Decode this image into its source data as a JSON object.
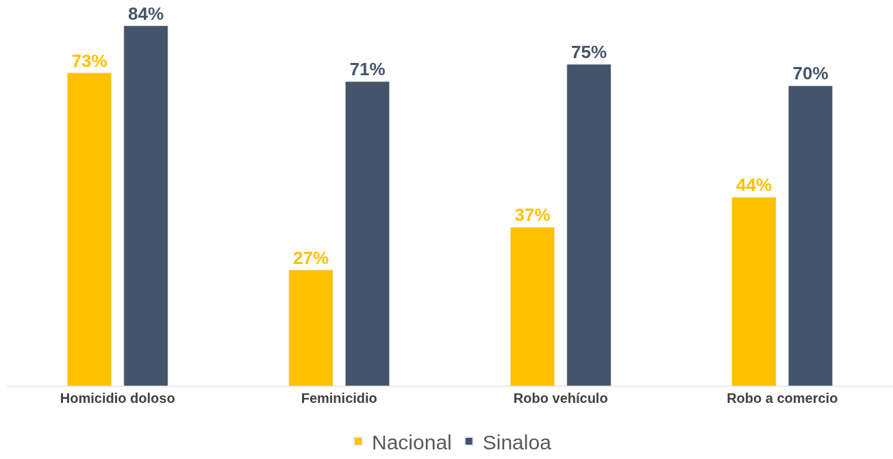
{
  "chart_data": {
    "type": "bar",
    "categories": [
      "Homicidio doloso",
      "Feminicidio",
      "Robo vehículo",
      "Robo a comercio"
    ],
    "series": [
      {
        "name": "Nacional",
        "color": "#ffc000",
        "values": [
          73,
          27,
          37,
          44
        ],
        "value_labels": [
          "73%",
          "27%",
          "37%",
          "44%"
        ]
      },
      {
        "name": "Sinaloa",
        "color": "#44546a",
        "values": [
          84,
          71,
          75,
          70
        ],
        "value_labels": [
          "84%",
          "71%",
          "75%",
          "70%"
        ]
      }
    ],
    "tick_labels": "x",
    "legend": "bottom"
  }
}
